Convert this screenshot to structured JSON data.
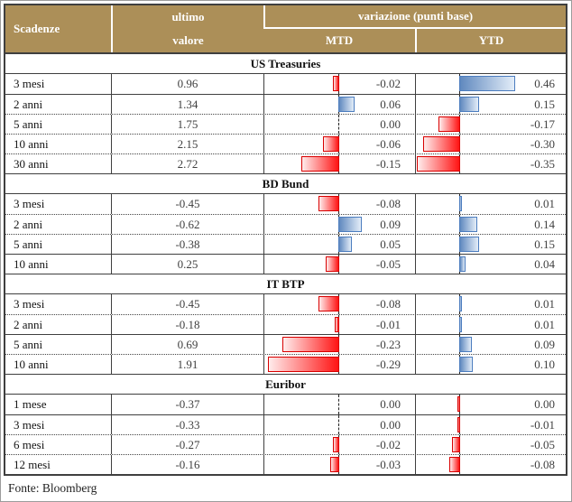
{
  "colors": {
    "header_bg": "#AC8F58",
    "header_text": "#FFFFFF",
    "grid_dark": "#3F3F3F",
    "value_text": "#3F3F3F",
    "bar_negative": "#FF1414",
    "bar_negative_border": "#D80000",
    "bar_positive": "#6089BF",
    "bar_positive_border": "#4C7DBF"
  },
  "table": {
    "header": {
      "maturity": "Scadenze",
      "last_line1": "ultimo",
      "last_line2": "valore",
      "variation": "variazione (punti base)",
      "mtd": "MTD",
      "ytd": "YTD"
    },
    "footer_source": "Fonte: Bloomberg"
  },
  "chart_data": {
    "type": "table",
    "columns": [
      "Scadenze",
      "ultimo valore",
      "variazione (punti base) MTD",
      "variazione (punti base) YTD"
    ],
    "bar_axis_note": "red bars = negative (extend left of dashed axis), blue bars = positive (extend right)",
    "sections": [
      {
        "title": "US Treasuries",
        "rows": [
          {
            "label": "3 mesi",
            "last": 0.96,
            "mtd": -0.02,
            "ytd": 0.46,
            "sep": null
          },
          {
            "label": "2 anni",
            "last": 1.34,
            "mtd": 0.06,
            "ytd": 0.15,
            "sep": "solid"
          },
          {
            "label": "5 anni",
            "last": 1.75,
            "mtd": 0.0,
            "ytd": -0.17,
            "sep": "dotted"
          },
          {
            "label": "10 anni",
            "last": 2.15,
            "mtd": -0.06,
            "ytd": -0.3,
            "sep": "dotted"
          },
          {
            "label": "30 anni",
            "last": 2.72,
            "mtd": -0.15,
            "ytd": -0.35,
            "sep": "dotted"
          }
        ]
      },
      {
        "title": "BD Bund",
        "rows": [
          {
            "label": "3 mesi",
            "last": -0.45,
            "mtd": -0.08,
            "ytd": 0.01,
            "sep": null
          },
          {
            "label": "2 anni",
            "last": -0.62,
            "mtd": 0.09,
            "ytd": 0.14,
            "sep": "dotted"
          },
          {
            "label": "5 anni",
            "last": -0.38,
            "mtd": 0.05,
            "ytd": 0.15,
            "sep": "dotted"
          },
          {
            "label": "10 anni",
            "last": 0.25,
            "mtd": -0.05,
            "ytd": 0.04,
            "sep": "solid"
          }
        ]
      },
      {
        "title": "IT BTP",
        "rows": [
          {
            "label": "3 mesi",
            "last": -0.45,
            "mtd": -0.08,
            "ytd": 0.01,
            "sep": null
          },
          {
            "label": "2 anni",
            "last": -0.18,
            "mtd": -0.01,
            "ytd": 0.01,
            "sep": "dotted"
          },
          {
            "label": "5 anni",
            "last": 0.69,
            "mtd": -0.23,
            "ytd": 0.09,
            "sep": "solid"
          },
          {
            "label": "10 anni",
            "last": 1.91,
            "mtd": -0.29,
            "ytd": 0.1,
            "sep": "dotted"
          }
        ]
      },
      {
        "title": "Euribor",
        "rows": [
          {
            "label": "1 mese",
            "last": -0.37,
            "mtd": 0.0,
            "ytd": 0.0,
            "ytd_bar": -0.004,
            "sep": null
          },
          {
            "label": "3 mesi",
            "last": -0.33,
            "mtd": 0.0,
            "ytd": -0.01,
            "sep": "solid"
          },
          {
            "label": "6 mesi",
            "last": -0.27,
            "mtd": -0.02,
            "ytd": -0.05,
            "sep": "dotted"
          },
          {
            "label": "12 mesi",
            "last": -0.16,
            "mtd": -0.03,
            "ytd": -0.08,
            "sep": "dotted"
          }
        ]
      }
    ]
  }
}
